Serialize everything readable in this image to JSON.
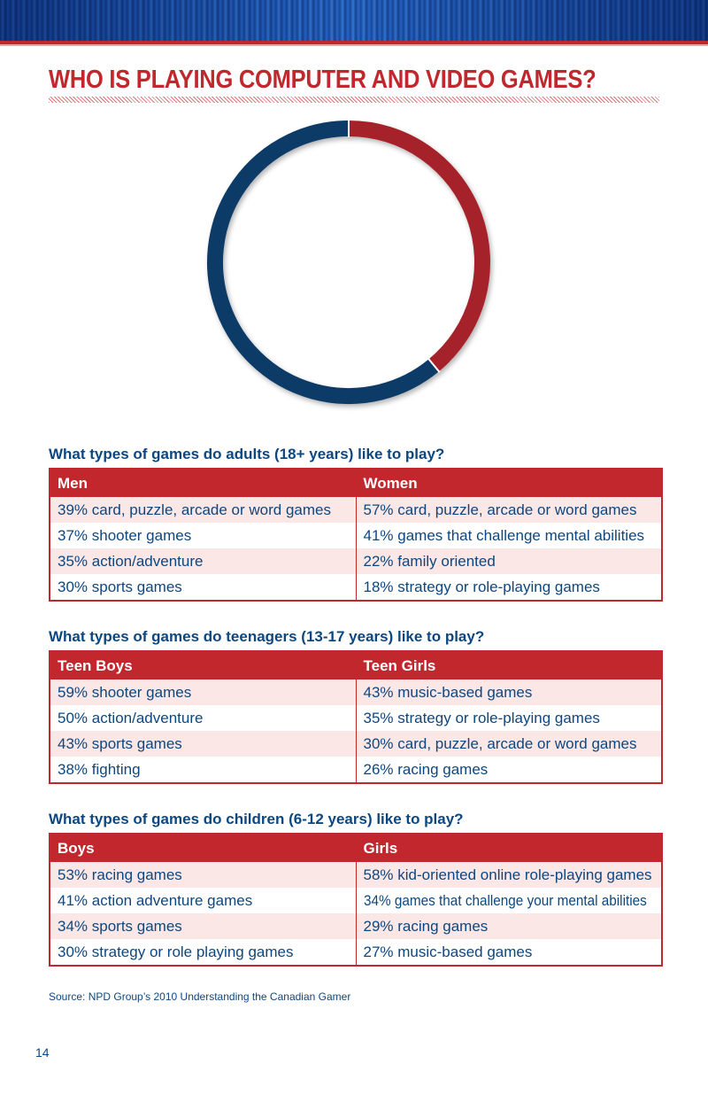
{
  "page": {
    "title": "WHO IS PLAYING COMPUTER AND VIDEO GAMES?",
    "source": "Source: NPD Group’s 2010 Understanding the Canadian Gamer",
    "page_number": "14"
  },
  "chart_data": {
    "type": "pie",
    "style": "donut-ring",
    "slices": [
      {
        "color": "#a6232a",
        "value": 39
      },
      {
        "color": "#0f3a68",
        "value": 61
      }
    ]
  },
  "sections": [
    {
      "heading": "What types of games do adults (18+ years) like to play?",
      "columns": [
        "Men",
        "Women"
      ],
      "rows": [
        [
          "39% card, puzzle, arcade or word games",
          "57% card, puzzle, arcade or word games"
        ],
        [
          "37% shooter games",
          "41% games that challenge mental abilities"
        ],
        [
          "35% action/adventure",
          "22% family oriented"
        ],
        [
          "30% sports games",
          "18% strategy or role-playing games"
        ]
      ]
    },
    {
      "heading": "What types of games do teenagers (13-17 years) like to play?",
      "columns": [
        "Teen Boys",
        "Teen Girls"
      ],
      "rows": [
        [
          "59% shooter games",
          "43% music-based games"
        ],
        [
          "50% action/adventure",
          "35% strategy or role-playing games"
        ],
        [
          "43% sports games",
          "30% card, puzzle, arcade or word games"
        ],
        [
          "38% fighting",
          "26% racing games"
        ]
      ]
    },
    {
      "heading": "What types of games do children (6-12 years) like to play?",
      "columns": [
        "Boys",
        "Girls"
      ],
      "rows": [
        [
          "53% racing games",
          "58% kid-oriented online role-playing games"
        ],
        [
          "41% action adventure games",
          "34% games that challenge your mental abilities"
        ],
        [
          "34% sports games",
          "29% racing games"
        ],
        [
          "30% strategy or role playing games",
          "27% music-based games"
        ]
      ]
    }
  ],
  "colors": {
    "accent_red": "#c1272d",
    "text_blue": "#0d4780",
    "row_tint": "#fbe7e6"
  }
}
